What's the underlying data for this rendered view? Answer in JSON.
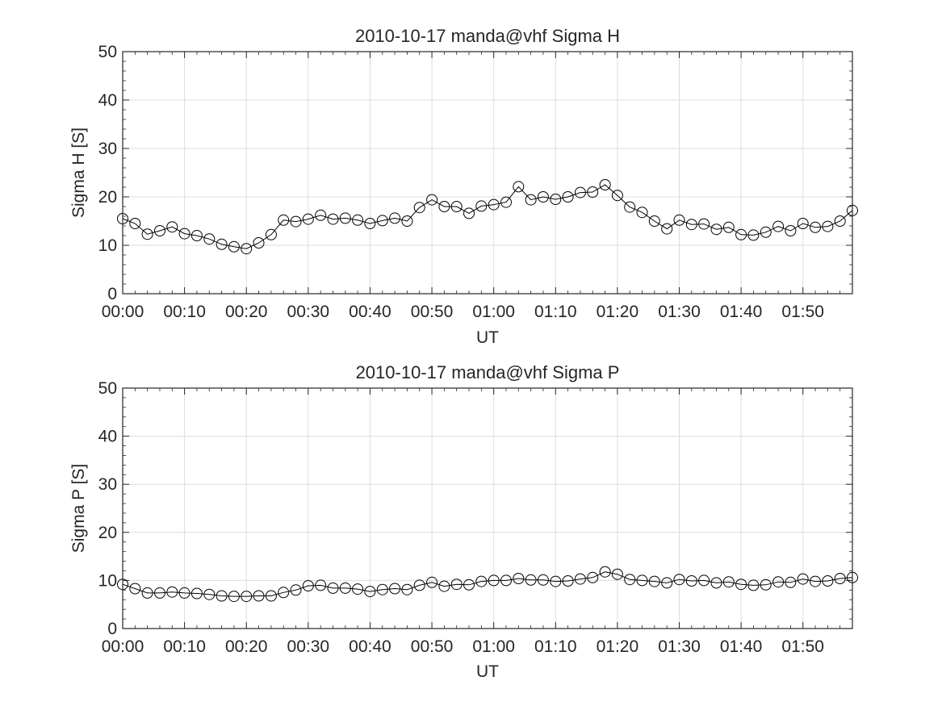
{
  "chart_data": [
    {
      "type": "line",
      "title": "2010-10-17  manda@vhf Sigma H",
      "xlabel": "UT",
      "ylabel": "Sigma H [S]",
      "xlim": [
        "00:00",
        "01:58"
      ],
      "ylim": [
        0,
        50
      ],
      "yticks": [
        "0",
        "10",
        "20",
        "30",
        "40",
        "50"
      ],
      "xticks": [
        "00:00",
        "00:10",
        "00:20",
        "00:30",
        "00:40",
        "00:50",
        "01:00",
        "01:10",
        "01:20",
        "01:30",
        "01:40",
        "01:50"
      ],
      "grid": true,
      "marker": "circle",
      "line_color": "#000000",
      "x": [
        "00:00",
        "00:02",
        "00:04",
        "00:06",
        "00:08",
        "00:10",
        "00:12",
        "00:14",
        "00:16",
        "00:18",
        "00:20",
        "00:22",
        "00:24",
        "00:26",
        "00:28",
        "00:30",
        "00:32",
        "00:34",
        "00:36",
        "00:38",
        "00:40",
        "00:42",
        "00:44",
        "00:46",
        "00:48",
        "00:50",
        "00:52",
        "00:54",
        "00:56",
        "00:58",
        "01:00",
        "01:02",
        "01:04",
        "01:06",
        "01:08",
        "01:10",
        "01:12",
        "01:14",
        "01:16",
        "01:18",
        "01:20",
        "01:22",
        "01:24",
        "01:26",
        "01:28",
        "01:30",
        "01:32",
        "01:34",
        "01:36",
        "01:38",
        "01:40",
        "01:42",
        "01:44",
        "01:46",
        "01:48",
        "01:50",
        "01:52",
        "01:54",
        "01:56",
        "01:58"
      ],
      "values": [
        15.5,
        14.5,
        12.3,
        13.0,
        13.8,
        12.4,
        12.0,
        11.3,
        10.2,
        9.7,
        9.3,
        10.5,
        12.2,
        15.2,
        14.9,
        15.4,
        16.2,
        15.4,
        15.6,
        15.2,
        14.5,
        15.1,
        15.6,
        15.0,
        17.8,
        19.4,
        18.0,
        18.0,
        16.6,
        18.1,
        18.4,
        18.9,
        22.1,
        19.4,
        20.0,
        19.5,
        20.0,
        20.9,
        21.0,
        22.5,
        20.3,
        17.9,
        16.8,
        15.0,
        13.4,
        15.2,
        14.3,
        14.4,
        13.3,
        13.7,
        12.2,
        12.1,
        12.7,
        13.9,
        13.0,
        14.5,
        13.7,
        13.9,
        15.0,
        17.2
      ]
    },
    {
      "type": "line",
      "title": "2010-10-17  manda@vhf Sigma P",
      "xlabel": "UT",
      "ylabel": "Sigma P [S]",
      "xlim": [
        "00:00",
        "01:58"
      ],
      "ylim": [
        0,
        50
      ],
      "yticks": [
        "0",
        "10",
        "20",
        "30",
        "40",
        "50"
      ],
      "xticks": [
        "00:00",
        "00:10",
        "00:20",
        "00:30",
        "00:40",
        "00:50",
        "01:00",
        "01:10",
        "01:20",
        "01:30",
        "01:40",
        "01:50"
      ],
      "grid": true,
      "marker": "circle",
      "line_color": "#000000",
      "x": [
        "00:00",
        "00:02",
        "00:04",
        "00:06",
        "00:08",
        "00:10",
        "00:12",
        "00:14",
        "00:16",
        "00:18",
        "00:20",
        "00:22",
        "00:24",
        "00:26",
        "00:28",
        "00:30",
        "00:32",
        "00:34",
        "00:36",
        "00:38",
        "00:40",
        "00:42",
        "00:44",
        "00:46",
        "00:48",
        "00:50",
        "00:52",
        "00:54",
        "00:56",
        "00:58",
        "01:00",
        "01:02",
        "01:04",
        "01:06",
        "01:08",
        "01:10",
        "01:12",
        "01:14",
        "01:16",
        "01:18",
        "01:20",
        "01:22",
        "01:24",
        "01:26",
        "01:28",
        "01:30",
        "01:32",
        "01:34",
        "01:36",
        "01:38",
        "01:40",
        "01:42",
        "01:44",
        "01:46",
        "01:48",
        "01:50",
        "01:52",
        "01:54",
        "01:56",
        "01:58"
      ],
      "values": [
        9.2,
        8.3,
        7.4,
        7.4,
        7.6,
        7.4,
        7.3,
        7.1,
        6.8,
        6.7,
        6.7,
        6.8,
        6.8,
        7.5,
        8.0,
        8.9,
        9.0,
        8.4,
        8.4,
        8.2,
        7.7,
        8.1,
        8.3,
        8.1,
        9.0,
        9.6,
        8.8,
        9.2,
        9.1,
        9.8,
        10.0,
        10.0,
        10.4,
        10.1,
        10.1,
        9.8,
        9.9,
        10.3,
        10.6,
        11.8,
        11.3,
        10.2,
        10.0,
        9.8,
        9.5,
        10.2,
        9.9,
        10.0,
        9.5,
        9.7,
        9.2,
        9.0,
        9.1,
        9.7,
        9.6,
        10.3,
        9.8,
        9.9,
        10.4,
        10.6
      ]
    }
  ]
}
